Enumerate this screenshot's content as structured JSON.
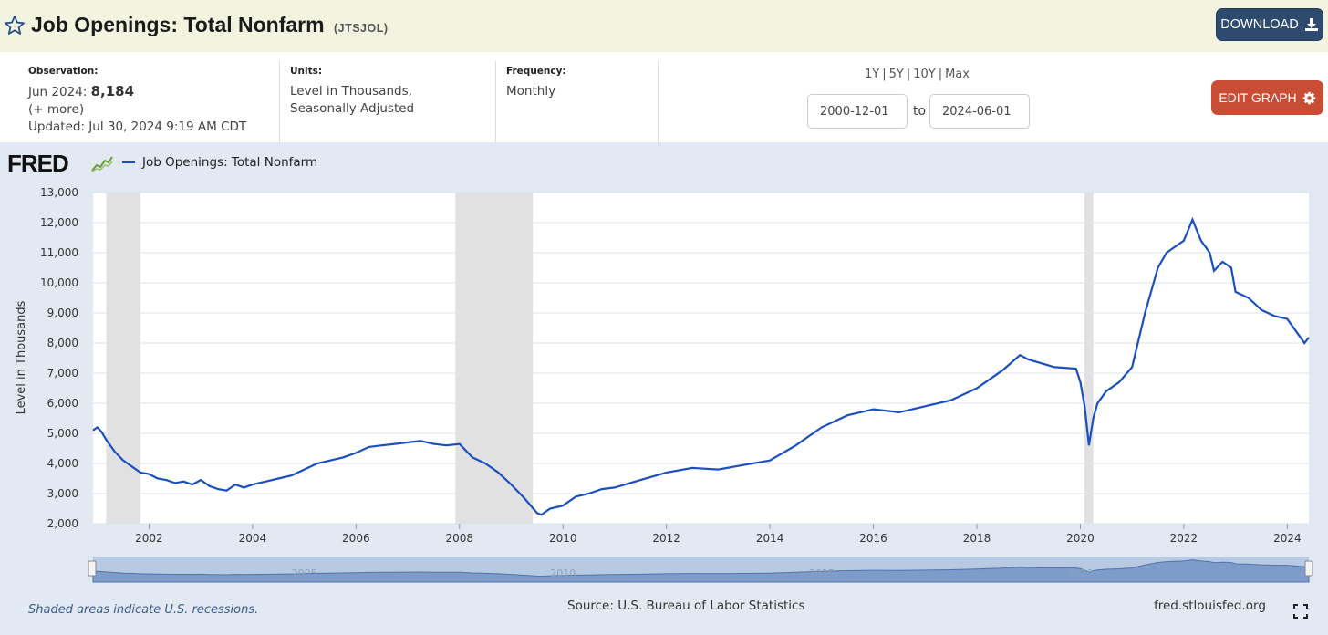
{
  "header": {
    "title": "Job Openings: Total Nonfarm",
    "series_id": "(JTSJOL)",
    "download_label": "DOWNLOAD",
    "star_icon": "star-outline-icon",
    "download_icon": "download-icon"
  },
  "info": {
    "observation_label": "Observation:",
    "observation_date": "Jun 2024:",
    "observation_value": "8,184",
    "more_link": "(+ more)",
    "updated": "Updated: Jul 30, 2024 9:19 AM CDT",
    "units_label": "Units:",
    "units_line1": "Level in Thousands,",
    "units_line2": "Seasonally Adjusted",
    "frequency_label": "Frequency:",
    "frequency_value": "Monthly",
    "range_links": [
      "1Y",
      "5Y",
      "10Y",
      "Max"
    ],
    "range_sep": "|",
    "start_date": "2000-12-01",
    "to_label": "to",
    "end_date": "2024-06-01",
    "edit_label": "EDIT GRAPH",
    "edit_icon": "gear-icon"
  },
  "chart_area": {
    "logo_text": "FRED",
    "legend_label": "Job Openings: Total Nonfarm",
    "footnote": "Shaded areas indicate U.S. recessions.",
    "source": "Source: U.S. Bureau of Labor Statistics",
    "site": "fred.stlouisfed.org",
    "fullscreen_icon": "fullscreen-icon",
    "line_color": "#1b4fbf",
    "recession_color": "#e1e1e1"
  },
  "chart_data": {
    "type": "line",
    "title": "",
    "xlabel": "",
    "ylabel": "Level in Thousands",
    "ylim": [
      2000,
      13000
    ],
    "y_ticks": [
      2000,
      3000,
      4000,
      5000,
      6000,
      7000,
      8000,
      9000,
      10000,
      11000,
      12000,
      13000
    ],
    "y_tick_labels": [
      "2,000",
      "3,000",
      "4,000",
      "5,000",
      "6,000",
      "7,000",
      "8,000",
      "9,000",
      "10,000",
      "11,000",
      "12,000",
      "13,000"
    ],
    "x_ticks": [
      2002,
      2004,
      2006,
      2008,
      2010,
      2012,
      2014,
      2016,
      2018,
      2020,
      2022,
      2024
    ],
    "x_range": [
      2000.917,
      2024.417
    ],
    "grid": true,
    "recessions": [
      [
        2001.17,
        2001.83
      ],
      [
        2007.92,
        2009.42
      ],
      [
        2020.08,
        2020.25
      ]
    ],
    "navigator_labels": [
      "2005",
      "2010",
      "2015",
      "2020"
    ],
    "series": [
      {
        "name": "Job Openings: Total Nonfarm",
        "x": [
          2000.917,
          2001.0,
          2001.083,
          2001.167,
          2001.333,
          2001.5,
          2001.667,
          2001.833,
          2002.0,
          2002.167,
          2002.333,
          2002.5,
          2002.667,
          2002.833,
          2003.0,
          2003.167,
          2003.333,
          2003.5,
          2003.667,
          2003.833,
          2004.0,
          2004.25,
          2004.5,
          2004.75,
          2005.0,
          2005.25,
          2005.5,
          2005.75,
          2006.0,
          2006.25,
          2006.5,
          2006.75,
          2007.0,
          2007.25,
          2007.5,
          2007.75,
          2008.0,
          2008.25,
          2008.5,
          2008.75,
          2009.0,
          2009.25,
          2009.5,
          2009.583,
          2009.75,
          2010.0,
          2010.25,
          2010.5,
          2010.75,
          2011.0,
          2011.5,
          2012.0,
          2012.5,
          2013.0,
          2013.5,
          2014.0,
          2014.5,
          2015.0,
          2015.5,
          2016.0,
          2016.5,
          2017.0,
          2017.5,
          2018.0,
          2018.5,
          2018.833,
          2019.0,
          2019.5,
          2019.917,
          2020.0,
          2020.083,
          2020.167,
          2020.25,
          2020.333,
          2020.5,
          2020.75,
          2021.0,
          2021.25,
          2021.5,
          2021.667,
          2021.833,
          2022.0,
          2022.167,
          2022.333,
          2022.5,
          2022.583,
          2022.75,
          2022.917,
          2023.0,
          2023.25,
          2023.5,
          2023.75,
          2024.0,
          2024.167,
          2024.333,
          2024.417
        ],
        "values": [
          5100,
          5200,
          5050,
          4800,
          4400,
          4100,
          3900,
          3700,
          3650,
          3500,
          3450,
          3350,
          3400,
          3300,
          3450,
          3250,
          3150,
          3100,
          3300,
          3200,
          3300,
          3400,
          3500,
          3600,
          3800,
          4000,
          4100,
          4200,
          4350,
          4550,
          4600,
          4650,
          4700,
          4750,
          4650,
          4600,
          4650,
          4200,
          4000,
          3700,
          3300,
          2850,
          2350,
          2300,
          2500,
          2600,
          2900,
          3000,
          3150,
          3200,
          3450,
          3700,
          3850,
          3800,
          3950,
          4100,
          4600,
          5200,
          5600,
          5800,
          5700,
          5900,
          6100,
          6500,
          7100,
          7600,
          7450,
          7200,
          7150,
          6700,
          5900,
          4600,
          5500,
          6000,
          6400,
          6700,
          7200,
          9000,
          10500,
          11000,
          11200,
          11400,
          12100,
          11400,
          11000,
          10400,
          10700,
          10500,
          9700,
          9500,
          9100,
          8900,
          8800,
          8400,
          8000,
          8184
        ]
      }
    ]
  }
}
